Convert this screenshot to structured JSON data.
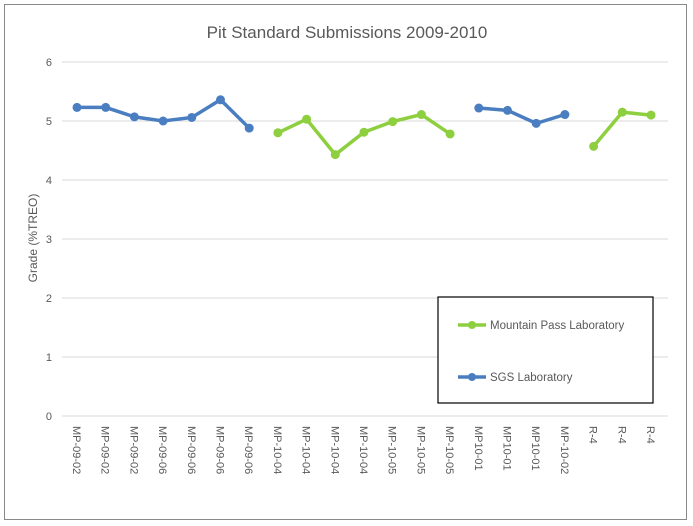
{
  "chart_data": {
    "type": "line",
    "title": "Pit Standard Submissions 2009-2010",
    "xlabel": "",
    "ylabel": "Grade (%TREO)",
    "ylim": [
      0,
      6
    ],
    "yticks": [
      0,
      1,
      2,
      3,
      4,
      5,
      6
    ],
    "grid": true,
    "legend_placement": "bottom-right",
    "categories": [
      "MP-09-02",
      "MP-09-02",
      "MP-09-02",
      "MP-09-06",
      "MP-09-06",
      "MP-09-06",
      "MP-09-06",
      "MP-10-04",
      "MP-10-04",
      "MP-10-04",
      "MP-10-04",
      "MP-10-05",
      "MP-10-05",
      "MP-10-05",
      "MP10-01",
      "MP10-01",
      "MP10-01",
      "MP-10-02",
      "R-4",
      "R-4",
      "R-4"
    ],
    "series": [
      {
        "name": "Mountain Pass Laboratory",
        "color": "#8DCF3F",
        "values": [
          null,
          null,
          null,
          null,
          null,
          null,
          null,
          4.8,
          5.03,
          4.43,
          4.81,
          4.99,
          5.11,
          4.78,
          null,
          null,
          null,
          null,
          4.57,
          5.15,
          5.1
        ]
      },
      {
        "name": "SGS Laboratory",
        "color": "#4A7EC1",
        "values": [
          5.23,
          5.23,
          5.07,
          5.0,
          5.06,
          5.36,
          4.88,
          null,
          null,
          null,
          null,
          null,
          null,
          null,
          5.22,
          5.18,
          4.96,
          5.11,
          null,
          null,
          null
        ]
      }
    ]
  }
}
